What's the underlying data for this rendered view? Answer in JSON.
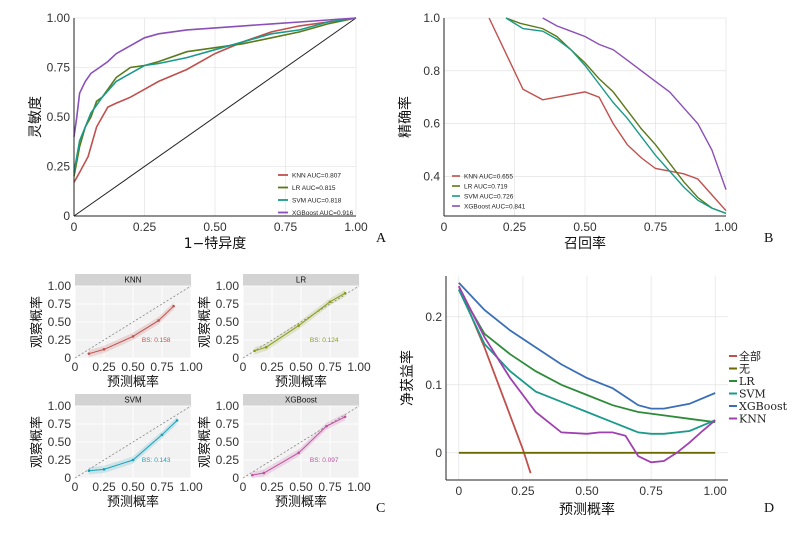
{
  "chart_data": [
    {
      "panel": "A",
      "type": "line",
      "xlabel": "1−特异度",
      "ylabel": "灵敏度",
      "xlim": [
        0,
        1
      ],
      "ylim": [
        0,
        1
      ],
      "xticks": [
        "0",
        "0.25",
        "0.50",
        "0.75",
        "1.00"
      ],
      "yticks": [
        "0",
        "0.25",
        "0.50",
        "0.75",
        "1.00"
      ],
      "legend_position": "bottom-right",
      "series": [
        {
          "name": "KNN AUC=0.807",
          "color": "#c0504d",
          "x": [
            0,
            0.02,
            0.05,
            0.08,
            0.12,
            0.15,
            0.2,
            0.25,
            0.3,
            0.4,
            0.5,
            0.6,
            0.7,
            0.8,
            0.9,
            1.0
          ],
          "y": [
            0.17,
            0.22,
            0.3,
            0.45,
            0.55,
            0.57,
            0.6,
            0.64,
            0.68,
            0.74,
            0.82,
            0.88,
            0.93,
            0.96,
            0.98,
            1.0
          ]
        },
        {
          "name": "LR AUC=0.815",
          "color": "#5a7a1a",
          "x": [
            0,
            0.02,
            0.04,
            0.06,
            0.08,
            0.1,
            0.15,
            0.2,
            0.25,
            0.3,
            0.4,
            0.5,
            0.6,
            0.7,
            0.8,
            0.9,
            1.0
          ],
          "y": [
            0.2,
            0.35,
            0.45,
            0.5,
            0.58,
            0.6,
            0.7,
            0.75,
            0.76,
            0.78,
            0.83,
            0.85,
            0.87,
            0.9,
            0.93,
            0.97,
            1.0
          ]
        },
        {
          "name": "SVM AUC=0.818",
          "color": "#1a9a8a",
          "x": [
            0,
            0.02,
            0.04,
            0.06,
            0.08,
            0.1,
            0.15,
            0.2,
            0.25,
            0.3,
            0.4,
            0.5,
            0.6,
            0.7,
            0.8,
            0.9,
            1.0
          ],
          "y": [
            0.22,
            0.38,
            0.45,
            0.52,
            0.56,
            0.6,
            0.68,
            0.72,
            0.76,
            0.77,
            0.8,
            0.84,
            0.88,
            0.92,
            0.94,
            0.98,
            1.0
          ]
        },
        {
          "name": "XGBoost AUC=0.916",
          "color": "#8a4fb8",
          "x": [
            0,
            0.01,
            0.02,
            0.04,
            0.06,
            0.08,
            0.12,
            0.15,
            0.2,
            0.25,
            0.3,
            0.4,
            0.5,
            0.6,
            0.7,
            0.8,
            0.9,
            1.0
          ],
          "y": [
            0.4,
            0.5,
            0.62,
            0.68,
            0.72,
            0.74,
            0.78,
            0.82,
            0.86,
            0.9,
            0.92,
            0.94,
            0.95,
            0.96,
            0.97,
            0.98,
            0.99,
            1.0
          ]
        }
      ],
      "diagonal": true
    },
    {
      "panel": "B",
      "type": "line",
      "xlabel": "召回率",
      "ylabel": "精确率",
      "xlim": [
        0,
        1
      ],
      "ylim": [
        0.25,
        1.0
      ],
      "xticks": [
        "0",
        "0.25",
        "0.50",
        "0.75",
        "1.00"
      ],
      "yticks": [
        "0.4",
        "0.6",
        "0.8",
        "1.0"
      ],
      "legend_position": "bottom-left",
      "series": [
        {
          "name": "KNN AUC=0.655",
          "color": "#c0504d",
          "x": [
            0.16,
            0.28,
            0.35,
            0.5,
            0.55,
            0.6,
            0.65,
            0.7,
            0.75,
            0.8,
            0.85,
            0.9,
            0.95,
            1.0
          ],
          "y": [
            1.0,
            0.73,
            0.69,
            0.72,
            0.7,
            0.6,
            0.52,
            0.47,
            0.43,
            0.42,
            0.41,
            0.39,
            0.33,
            0.27
          ]
        },
        {
          "name": "LR AUC=0.719",
          "color": "#5a7a1a",
          "x": [
            0.22,
            0.27,
            0.35,
            0.4,
            0.45,
            0.5,
            0.55,
            0.6,
            0.65,
            0.7,
            0.75,
            0.8,
            0.85,
            0.9,
            0.95,
            1.0
          ],
          "y": [
            1.0,
            0.98,
            0.96,
            0.93,
            0.88,
            0.83,
            0.77,
            0.72,
            0.65,
            0.58,
            0.52,
            0.45,
            0.38,
            0.32,
            0.28,
            0.26
          ]
        },
        {
          "name": "SVM AUC=0.726",
          "color": "#1a9a8a",
          "x": [
            0.22,
            0.28,
            0.35,
            0.4,
            0.45,
            0.5,
            0.55,
            0.6,
            0.65,
            0.7,
            0.75,
            0.8,
            0.85,
            0.9,
            0.95,
            1.0
          ],
          "y": [
            1.0,
            0.96,
            0.95,
            0.92,
            0.88,
            0.82,
            0.75,
            0.68,
            0.62,
            0.55,
            0.48,
            0.42,
            0.36,
            0.31,
            0.28,
            0.26
          ]
        },
        {
          "name": "XGBoost AUC=0.841",
          "color": "#8a4fb8",
          "x": [
            0.35,
            0.4,
            0.45,
            0.5,
            0.55,
            0.6,
            0.65,
            0.7,
            0.75,
            0.8,
            0.85,
            0.9,
            0.95,
            1.0
          ],
          "y": [
            1.0,
            0.97,
            0.95,
            0.93,
            0.9,
            0.88,
            0.84,
            0.8,
            0.76,
            0.72,
            0.66,
            0.6,
            0.5,
            0.35
          ]
        }
      ]
    },
    {
      "panel": "C",
      "type": "line",
      "xlabel": "预测概率",
      "ylabel": "观察概率",
      "xlim": [
        0,
        1
      ],
      "ylim": [
        0,
        1
      ],
      "xticks": [
        "0",
        "0.25",
        "0.50",
        "0.75",
        "1.00"
      ],
      "yticks": [
        "0",
        "0.25",
        "0.50",
        "0.75",
        "1.00"
      ],
      "subplots": [
        {
          "title": "KNN",
          "bs": "BS: 0.158",
          "color": "#c0504d",
          "x": [
            0.12,
            0.25,
            0.5,
            0.72,
            0.85
          ],
          "y": [
            0.06,
            0.12,
            0.3,
            0.52,
            0.72
          ]
        },
        {
          "title": "LR",
          "bs": "BS: 0.124",
          "color": "#8a9a1a",
          "x": [
            0.1,
            0.2,
            0.48,
            0.75,
            0.88
          ],
          "y": [
            0.1,
            0.15,
            0.45,
            0.78,
            0.9
          ]
        },
        {
          "title": "SVM",
          "bs": "BS: 0.143",
          "color": "#1aa0b8",
          "x": [
            0.12,
            0.25,
            0.5,
            0.75,
            0.88
          ],
          "y": [
            0.1,
            0.12,
            0.25,
            0.6,
            0.8
          ]
        },
        {
          "title": "XGBoost",
          "bs": "BS: 0.097",
          "color": "#c04fa0",
          "x": [
            0.08,
            0.18,
            0.48,
            0.72,
            0.88
          ],
          "y": [
            0.04,
            0.07,
            0.35,
            0.72,
            0.85
          ]
        }
      ]
    },
    {
      "panel": "D",
      "type": "line",
      "xlabel": "预测概率",
      "ylabel": "净获益率",
      "xlim": [
        -0.05,
        1.05
      ],
      "ylim": [
        -0.04,
        0.26
      ],
      "xticks": [
        "0",
        "0.25",
        "0.50",
        "0.75",
        "1.00"
      ],
      "yticks": [
        "0",
        "0.1",
        "0.2"
      ],
      "legend_position": "right",
      "series": [
        {
          "name": "全部",
          "color": "#c0504d",
          "x": [
            0,
            0.05,
            0.1,
            0.15,
            0.2,
            0.25,
            0.28
          ],
          "y": [
            0.245,
            0.2,
            0.155,
            0.105,
            0.055,
            0.005,
            -0.03
          ]
        },
        {
          "name": "无",
          "color": "#6a6a00",
          "x": [
            0,
            1.0
          ],
          "y": [
            0,
            0
          ]
        },
        {
          "name": "LR",
          "color": "#2e8b3a",
          "x": [
            0,
            0.1,
            0.2,
            0.3,
            0.4,
            0.5,
            0.6,
            0.7,
            0.8,
            0.9,
            1.0
          ],
          "y": [
            0.24,
            0.175,
            0.145,
            0.12,
            0.1,
            0.085,
            0.07,
            0.06,
            0.055,
            0.05,
            0.045
          ]
        },
        {
          "name": "SVM",
          "color": "#1a9a8a",
          "x": [
            0,
            0.1,
            0.2,
            0.3,
            0.4,
            0.5,
            0.6,
            0.7,
            0.75,
            0.8,
            0.9,
            1.0
          ],
          "y": [
            0.24,
            0.16,
            0.12,
            0.09,
            0.075,
            0.06,
            0.045,
            0.03,
            0.028,
            0.028,
            0.032,
            0.048
          ]
        },
        {
          "name": "XGBoost",
          "color": "#3a6fb8",
          "x": [
            0,
            0.1,
            0.2,
            0.3,
            0.4,
            0.5,
            0.6,
            0.7,
            0.75,
            0.8,
            0.9,
            1.0
          ],
          "y": [
            0.25,
            0.21,
            0.18,
            0.155,
            0.13,
            0.11,
            0.095,
            0.07,
            0.065,
            0.065,
            0.072,
            0.088
          ]
        },
        {
          "name": "KNN",
          "color": "#a040b0",
          "x": [
            0,
            0.1,
            0.2,
            0.3,
            0.4,
            0.5,
            0.55,
            0.6,
            0.65,
            0.7,
            0.75,
            0.8,
            0.85,
            0.9,
            0.95,
            1.0
          ],
          "y": [
            0.245,
            0.17,
            0.11,
            0.06,
            0.03,
            0.028,
            0.03,
            0.03,
            0.025,
            -0.005,
            -0.014,
            -0.012,
            0.0,
            0.015,
            0.032,
            0.048
          ]
        }
      ]
    }
  ],
  "panel_labels": [
    "A",
    "B",
    "C",
    "D"
  ],
  "colors": {
    "panel_bg": "#ffffff",
    "grid": "#dedede",
    "strip_bg": "#d3d3d3"
  }
}
